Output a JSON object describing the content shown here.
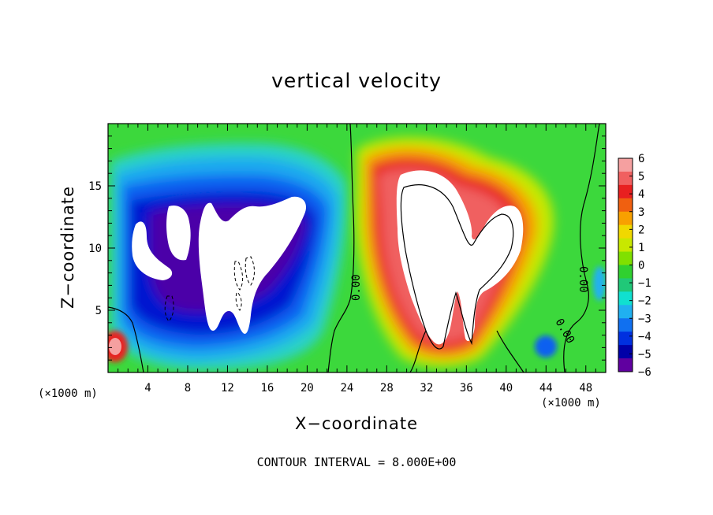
{
  "chart_data": {
    "type": "heatmap",
    "title": "vertical velocity",
    "xlabel": "X−coordinate",
    "ylabel": "Z−coordinate",
    "x_unit": "(×1000 m)",
    "xlim": [
      0,
      50
    ],
    "ylim": [
      0,
      20
    ],
    "x_ticks": [
      4,
      8,
      12,
      16,
      20,
      24,
      28,
      32,
      36,
      40,
      44,
      48
    ],
    "y_ticks": [
      5,
      10,
      15
    ],
    "colorbar": {
      "range": [
        -6,
        6
      ],
      "ticks": [
        "6",
        "5",
        "4",
        "3",
        "2",
        "1",
        "0",
        "−1",
        "−2",
        "−3",
        "−4",
        "−5",
        "−6"
      ],
      "colors": [
        "#f5a0a0",
        "#f06060",
        "#e82020",
        "#f06010",
        "#f8a000",
        "#f0d800",
        "#c8e800",
        "#80e000",
        "#30d030",
        "#20c878",
        "#10e0d0",
        "#20b0f0",
        "#1070f0",
        "#0030e0",
        "#0000a8",
        "#6000a0"
      ]
    },
    "contour_interval": "CONTOUR INTERVAL = 8.000E+00",
    "contour_labels": [
      "0.00",
      "0.00",
      "0.00"
    ],
    "features": [
      {
        "name": "downdraft",
        "x": 12,
        "z": 10,
        "w": -8
      },
      {
        "name": "updraft",
        "x": 34,
        "z": 11,
        "w": 14
      },
      {
        "name": "updraft",
        "x": 0.8,
        "z": 2,
        "w": 5
      },
      {
        "name": "downdraft",
        "x": 44.5,
        "z": 2,
        "w": -4
      }
    ]
  }
}
